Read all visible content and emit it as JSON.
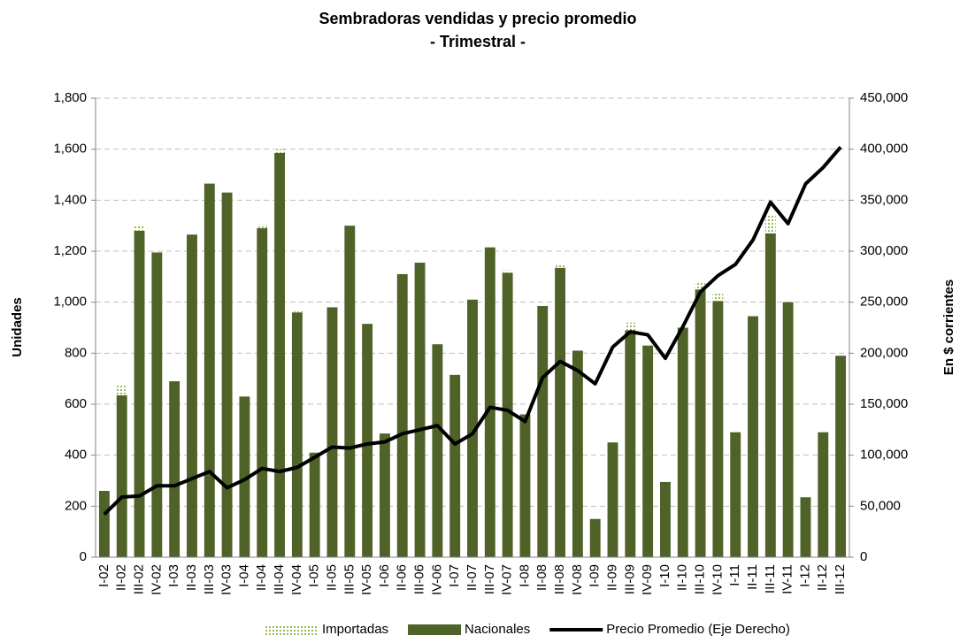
{
  "chart_data": {
    "type": "bar",
    "title": "Sembradoras vendidas y precio promedio",
    "subtitle": "- Trimestral -",
    "y_label": "Unidades",
    "y2_label": "En $ corrientes",
    "stacked": true,
    "grid": true,
    "categories": [
      "I-02",
      "II-02",
      "III-02",
      "IV-02",
      "I-03",
      "II-03",
      "III-03",
      "IV-03",
      "I-04",
      "II-04",
      "III-04",
      "IV-04",
      "I-05",
      "II-05",
      "III-05",
      "IV-05",
      "I-06",
      "II-06",
      "III-06",
      "IV-06",
      "I-07",
      "II-07",
      "III-07",
      "IV-07",
      "I-08",
      "II-08",
      "III-08",
      "IV-08",
      "I-09",
      "II-09",
      "III-09",
      "IV-09",
      "I-10",
      "II-10",
      "III-10",
      "IV-10",
      "I-11",
      "II-11",
      "III-11",
      "IV-11",
      "I-12",
      "II-12",
      "III-12"
    ],
    "series": [
      {
        "name": "Importadas",
        "type": "bar",
        "color": "#d7e4bd",
        "values": [
          0,
          40,
          20,
          0,
          0,
          0,
          0,
          0,
          0,
          15,
          15,
          10,
          0,
          0,
          0,
          0,
          0,
          0,
          0,
          0,
          0,
          0,
          0,
          10,
          0,
          0,
          15,
          0,
          0,
          0,
          30,
          0,
          0,
          0,
          25,
          30,
          0,
          0,
          70,
          0,
          0,
          0,
          0
        ]
      },
      {
        "name": "Nacionales",
        "type": "bar",
        "color": "#4f6228",
        "values": [
          260,
          635,
          1280,
          1195,
          690,
          1265,
          1465,
          1430,
          630,
          1290,
          1585,
          960,
          410,
          980,
          1300,
          915,
          485,
          1110,
          1155,
          835,
          715,
          1010,
          1215,
          1115,
          560,
          985,
          1135,
          810,
          150,
          450,
          890,
          830,
          295,
          900,
          1050,
          1005,
          490,
          945,
          1270,
          1000,
          235,
          490,
          790
        ]
      },
      {
        "name": "Precio Promedio (Eje Derecho)",
        "type": "line",
        "axis": "y2",
        "color": "#000000",
        "values": [
          42000,
          59000,
          60000,
          70000,
          70000,
          77000,
          84000,
          68000,
          76000,
          87000,
          84000,
          88000,
          98000,
          108000,
          107000,
          111000,
          113000,
          121000,
          125000,
          129000,
          111000,
          121000,
          147000,
          144000,
          133000,
          176000,
          192000,
          183000,
          170000,
          206000,
          221000,
          218000,
          195000,
          226000,
          260000,
          276000,
          287000,
          311000,
          348000,
          327000,
          366000,
          382000,
          402000
        ]
      }
    ],
    "ylim": [
      0,
      1800
    ],
    "yticks": [
      0,
      200,
      400,
      600,
      800,
      {
        "value": 1000,
        "label": "1,000"
      },
      {
        "value": 1200,
        "label": "1,200"
      },
      {
        "value": 1400,
        "label": "1,400"
      },
      {
        "value": 1600,
        "label": "1,600"
      },
      {
        "value": 1800,
        "label": "1,800"
      }
    ],
    "y2lim": [
      0,
      450000
    ],
    "y2ticks": [
      0,
      {
        "value": 50000,
        "label": "50,000"
      },
      {
        "value": 100000,
        "label": "100,000"
      },
      {
        "value": 150000,
        "label": "150,000"
      },
      {
        "value": 200000,
        "label": "200,000"
      },
      {
        "value": 250000,
        "label": "250,000"
      },
      {
        "value": 300000,
        "label": "300,000"
      },
      {
        "value": 350000,
        "label": "350,000"
      },
      {
        "value": 400000,
        "label": "400,000"
      },
      {
        "value": 450000,
        "label": "450,000"
      }
    ],
    "legend": "bottom"
  }
}
